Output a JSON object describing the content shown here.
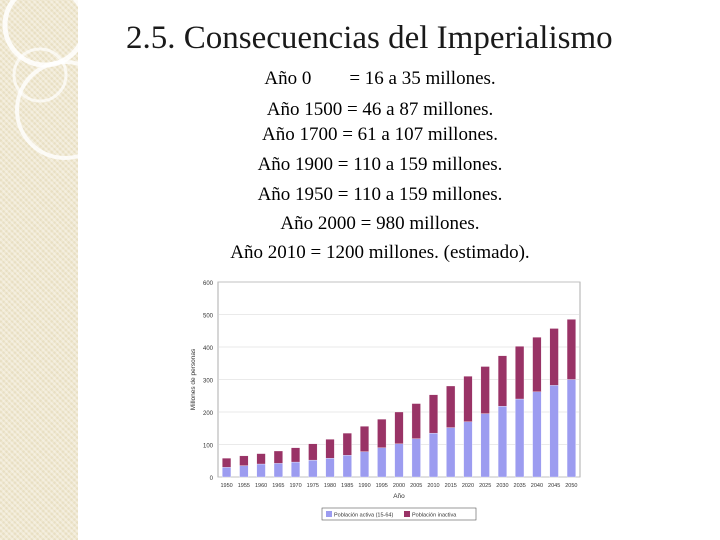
{
  "slide": {
    "title": "2.5. Consecuencias del Imperialismo",
    "lines": [
      "Año 0        = 16 a 35 millones.",
      "Año 1500 = 46 a 87 millones.",
      "Año 1700 = 61 a 107 millones.",
      "Año 1900 = 110 a 159 millones.",
      "Año 1950 = 110 a 159 millones.",
      "Año 2000 = 980 millones.",
      "Año 2010 = 1200 millones. (estimado)."
    ]
  },
  "colors": {
    "series_lower": "#9c9cf0",
    "series_upper": "#993366",
    "panel": "#efe7cf"
  },
  "chart_data": {
    "type": "bar",
    "stacked": true,
    "title": "",
    "xlabel": "Año",
    "ylabel": "Millones de personas",
    "ylim": [
      0,
      600
    ],
    "yticks": [
      0,
      100,
      200,
      300,
      400,
      500,
      600
    ],
    "categories": [
      "1950",
      "1955",
      "1960",
      "1965",
      "1970",
      "1975",
      "1980",
      "1985",
      "1990",
      "1995",
      "2000",
      "2005",
      "2010",
      "2015",
      "2020",
      "2025",
      "2030",
      "2035",
      "2040",
      "2045",
      "2050"
    ],
    "series": [
      {
        "name": "Población activa (15-64)",
        "color": "#9c9cf0",
        "values": [
          30,
          35,
          40,
          42,
          46,
          52,
          58,
          67,
          78,
          90,
          102,
          118,
          135,
          152,
          170,
          195,
          218,
          240,
          262,
          282,
          300
        ]
      },
      {
        "name": "Población inactiva",
        "color": "#993366",
        "values": [
          28,
          30,
          32,
          38,
          44,
          50,
          58,
          68,
          78,
          88,
          98,
          108,
          118,
          128,
          140,
          145,
          155,
          162,
          168,
          175,
          185
        ]
      }
    ],
    "legend": [
      "Población activa (15-64)",
      "Población inactiva"
    ],
    "legend_position": "bottom"
  }
}
